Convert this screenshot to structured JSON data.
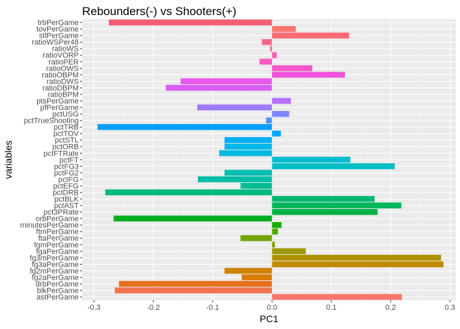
{
  "chart_data": {
    "type": "bar",
    "orientation": "horizontal",
    "title": "Rebounders(-) vs Shooters(+)",
    "xlabel": "PC1",
    "ylabel": "variables",
    "xlim": [
      -0.32,
      0.31
    ],
    "x_ticks": [
      -0.3,
      -0.2,
      -0.1,
      0.0,
      0.1,
      0.2,
      0.3
    ],
    "x_tick_labels": [
      "-0.3",
      "-0.2",
      "-0.1",
      "0.0",
      "0.1",
      "0.2",
      "0.3"
    ],
    "grid": true,
    "legend": "none",
    "categories": [
      "astPerGame",
      "blkPerGame",
      "drbPerGame",
      "fg2aPerGame",
      "fg2mPerGame",
      "fg3aPerGame",
      "fg3mPerGame",
      "fgaPerGame",
      "fgmPerGame",
      "ftaPerGame",
      "ftmPerGame",
      "minutesPerGame",
      "orbPerGame",
      "pct3PRate",
      "pctAST",
      "pctBLK",
      "pctDRB",
      "pctEFG",
      "pctFG",
      "pctFG2",
      "pctFG3",
      "pctFT",
      "pctFTRate",
      "pctORB",
      "pctSTL",
      "pctTOV",
      "pctTRB",
      "pctTrueShooting",
      "pctUSG",
      "pfPerGame",
      "ptsPerGame",
      "ratioBPM",
      "ratioDBPM",
      "ratioDWS",
      "ratioOBPM",
      "ratioOWS",
      "ratioPER",
      "ratioVORP",
      "ratioWS",
      "ratioWSPer48",
      "stlPerGame",
      "tovPerGame",
      "trbPerGame"
    ],
    "values": [
      0.219,
      -0.265,
      -0.258,
      -0.051,
      -0.08,
      0.289,
      0.285,
      0.057,
      0.005,
      -0.053,
      0.01,
      0.016,
      -0.267,
      0.178,
      0.218,
      0.173,
      -0.281,
      -0.053,
      -0.125,
      -0.08,
      0.207,
      0.132,
      -0.089,
      -0.08,
      -0.08,
      0.015,
      -0.294,
      -0.01,
      0.029,
      -0.126,
      0.032,
      0.0,
      -0.179,
      -0.154,
      0.123,
      0.068,
      -0.021,
      0.008,
      -0.003,
      -0.017,
      0.13,
      0.04,
      -0.275
    ],
    "colors": [
      "#F8766D",
      "#F0744E",
      "#E7711E",
      "#DB7A00",
      "#CE8300",
      "#C08A00",
      "#B09200",
      "#9F9900",
      "#8A9E00",
      "#72A400",
      "#52A800",
      "#19AC00",
      "#00AF1F",
      "#00B343",
      "#00B55C",
      "#00B870",
      "#00BA82",
      "#00BC94",
      "#00BDA4",
      "#00BEB3",
      "#00BFC3",
      "#00BDD2",
      "#00BAE0",
      "#00B6EB",
      "#00B0F6",
      "#00A8FE",
      "#009EFF",
      "#4A94FF",
      "#7C86FF",
      "#9F7CFF",
      "#B771FF",
      "#C967FF",
      "#D85EF6",
      "#E857EB",
      "#EF54DC",
      "#F556CD",
      "#FA58BE",
      "#FC5CAD",
      "#FD619B",
      "#FE6688",
      "#FB6B76",
      "#F8766D",
      "#F45E72"
    ]
  }
}
